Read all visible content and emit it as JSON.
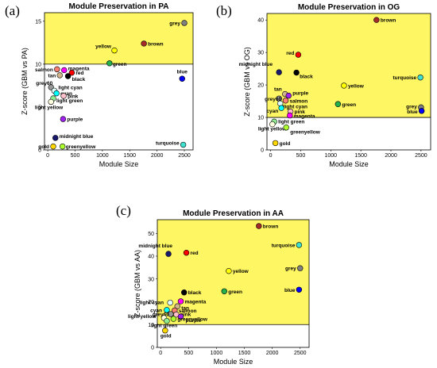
{
  "panels": [
    "(a)",
    "(b)",
    "(c)"
  ],
  "chart_data": [
    {
      "type": "scatter",
      "panel": "(a)",
      "title": "Module Preservation in PA",
      "xlabel": "Module Size",
      "ylabel": "Z-score (GBM vs PA)",
      "xlim": [
        -60,
        2660
      ],
      "ylim": [
        0,
        16
      ],
      "xticks": [
        0,
        500,
        1000,
        1500,
        2000,
        2500
      ],
      "yticks": [
        0,
        5,
        10,
        15
      ],
      "threshold": 10,
      "highlight": "#fef662",
      "points": [
        {
          "label": "grey",
          "x": 2500,
          "y": 14.8,
          "color": "#808080"
        },
        {
          "label": "brown",
          "x": 1760,
          "y": 12.4,
          "color": "#a52a2a"
        },
        {
          "label": "yellow",
          "x": 1220,
          "y": 11.6,
          "color": "#ffff00"
        },
        {
          "label": "green",
          "x": 1130,
          "y": 10.1,
          "color": "#22b14c"
        },
        {
          "label": "blue",
          "x": 2460,
          "y": 8.3,
          "color": "#0000ff"
        },
        {
          "label": "salmon",
          "x": 170,
          "y": 9.4,
          "color": "#fa8072"
        },
        {
          "label": "magenta",
          "x": 300,
          "y": 9.3,
          "color": "#ff00ff"
        },
        {
          "label": "red",
          "x": 440,
          "y": 9.0,
          "color": "#ff0000"
        },
        {
          "label": "tan",
          "x": 220,
          "y": 8.7,
          "color": "#d2b48c"
        },
        {
          "label": "black",
          "x": 370,
          "y": 8.6,
          "color": "#000000"
        },
        {
          "label": "grey60",
          "x": 60,
          "y": 7.3,
          "color": "#999999"
        },
        {
          "label": "light cyan",
          "x": 120,
          "y": 6.9,
          "color": "#e0ffff"
        },
        {
          "label": "cyan",
          "x": 160,
          "y": 6.6,
          "color": "#00ffff"
        },
        {
          "label": "pink",
          "x": 290,
          "y": 6.3,
          "color": "#ffc0cb"
        },
        {
          "label": "light green",
          "x": 100,
          "y": 6.0,
          "color": "#90ee90"
        },
        {
          "label": "light yellow",
          "x": 60,
          "y": 5.6,
          "color": "#ffffe0"
        },
        {
          "label": "purple",
          "x": 280,
          "y": 3.6,
          "color": "#a020f0"
        },
        {
          "label": "midnight blue",
          "x": 140,
          "y": 1.4,
          "color": "#191970"
        },
        {
          "label": "gold",
          "x": 100,
          "y": 0.4,
          "color": "#ffd700"
        },
        {
          "label": "greenyellow",
          "x": 270,
          "y": 0.4,
          "color": "#adff2f"
        },
        {
          "label": "turquoise",
          "x": 2480,
          "y": 0.6,
          "color": "#40e0d0"
        }
      ]
    },
    {
      "type": "scatter",
      "panel": "(b)",
      "title": "Module Preservation in OG",
      "xlabel": "Module Size",
      "ylabel": "Z-score (GBM vs OG)",
      "xlim": [
        -60,
        2660
      ],
      "ylim": [
        0,
        42
      ],
      "xticks": [
        0,
        500,
        1000,
        1500,
        2000,
        2500
      ],
      "yticks": [
        0,
        10,
        20,
        30,
        40
      ],
      "threshold": 10,
      "highlight": "#fef662",
      "points": [
        {
          "label": "brown",
          "x": 1760,
          "y": 40,
          "color": "#a52a2a"
        },
        {
          "label": "red",
          "x": 460,
          "y": 29.3,
          "color": "#ff0000"
        },
        {
          "label": "midnight blue",
          "x": 140,
          "y": 23.9,
          "color": "#191970"
        },
        {
          "label": "black",
          "x": 430,
          "y": 23.8,
          "color": "#000000"
        },
        {
          "label": "turquoise",
          "x": 2490,
          "y": 22.3,
          "color": "#40e0d0"
        },
        {
          "label": "yellow",
          "x": 1220,
          "y": 19.8,
          "color": "#ffff00"
        },
        {
          "label": "tan",
          "x": 240,
          "y": 17.2,
          "color": "#d2b48c"
        },
        {
          "label": "purple",
          "x": 300,
          "y": 16.7,
          "color": "#a020f0"
        },
        {
          "label": "grey60",
          "x": 140,
          "y": 15.8,
          "color": "#999999"
        },
        {
          "label": "salmon",
          "x": 250,
          "y": 15.2,
          "color": "#fa8072"
        },
        {
          "label": "light cyan",
          "x": 160,
          "y": 14.3,
          "color": "#e0ffff"
        },
        {
          "label": "green",
          "x": 1120,
          "y": 14.1,
          "color": "#22b14c"
        },
        {
          "label": "cyan",
          "x": 180,
          "y": 12.9,
          "color": "#00ffff"
        },
        {
          "label": "pink",
          "x": 330,
          "y": 11.8,
          "color": "#ffc0cb"
        },
        {
          "label": "magenta",
          "x": 320,
          "y": 10.6,
          "color": "#ff00ff"
        },
        {
          "label": "grey",
          "x": 2500,
          "y": 13.1,
          "color": "#808080"
        },
        {
          "label": "blue",
          "x": 2510,
          "y": 12.0,
          "color": "#0000ff"
        },
        {
          "label": "light green",
          "x": 60,
          "y": 8.7,
          "color": "#90ee90"
        },
        {
          "label": "light yellow",
          "x": 30,
          "y": 7.9,
          "color": "#ffffe0"
        },
        {
          "label": "greenyellow",
          "x": 260,
          "y": 6.9,
          "color": "#adff2f"
        },
        {
          "label": "gold",
          "x": 80,
          "y": 2.1,
          "color": "#ffd700"
        }
      ]
    },
    {
      "type": "scatter",
      "panel": "(c)",
      "title": "Module Preservation in AA",
      "xlabel": "Module Size",
      "ylabel": "Z-score (GBM vs AA)",
      "xlim": [
        -60,
        2660
      ],
      "ylim": [
        0,
        56
      ],
      "xticks": [
        0,
        500,
        1000,
        1500,
        2000,
        2500
      ],
      "yticks": [
        0,
        10,
        20,
        30,
        40,
        50
      ],
      "threshold": 10,
      "highlight": "#fef662",
      "points": [
        {
          "label": "brown",
          "x": 1760,
          "y": 53.2,
          "color": "#a52a2a"
        },
        {
          "label": "turquoise",
          "x": 2480,
          "y": 44.9,
          "color": "#40e0d0"
        },
        {
          "label": "midnight blue",
          "x": 140,
          "y": 41.0,
          "color": "#191970"
        },
        {
          "label": "red",
          "x": 460,
          "y": 41.5,
          "color": "#ff0000"
        },
        {
          "label": "grey",
          "x": 2500,
          "y": 34.7,
          "color": "#808080"
        },
        {
          "label": "yellow",
          "x": 1220,
          "y": 33.5,
          "color": "#ffff00"
        },
        {
          "label": "black",
          "x": 420,
          "y": 24.1,
          "color": "#000000"
        },
        {
          "label": "green",
          "x": 1140,
          "y": 24.6,
          "color": "#22b14c"
        },
        {
          "label": "blue",
          "x": 2480,
          "y": 25.3,
          "color": "#0000ff"
        },
        {
          "label": "magenta",
          "x": 360,
          "y": 20.2,
          "color": "#ff00ff"
        },
        {
          "label": "light cyan",
          "x": 170,
          "y": 19.6,
          "color": "#e0ffff"
        },
        {
          "label": "tan",
          "x": 300,
          "y": 18.0,
          "color": "#d2b48c"
        },
        {
          "label": "cyan",
          "x": 110,
          "y": 16.4,
          "color": "#00ffff"
        },
        {
          "label": "salmon",
          "x": 250,
          "y": 16.2,
          "color": "#fa8072"
        },
        {
          "label": "grey60",
          "x": 180,
          "y": 14.6,
          "color": "#999999"
        },
        {
          "label": "pink",
          "x": 280,
          "y": 14.4,
          "color": "#ffc0cb"
        },
        {
          "label": "purple",
          "x": 360,
          "y": 13.5,
          "color": "#a020f0"
        },
        {
          "label": "greenyellow",
          "x": 230,
          "y": 12.5,
          "color": "#adff2f"
        },
        {
          "label": "light yellow",
          "x": 60,
          "y": 12.9,
          "color": "#ffffe0"
        },
        {
          "label": "light green",
          "x": 110,
          "y": 11.6,
          "color": "#90ee90"
        },
        {
          "label": "gold",
          "x": 80,
          "y": 7.4,
          "color": "#ffd700"
        }
      ]
    }
  ]
}
